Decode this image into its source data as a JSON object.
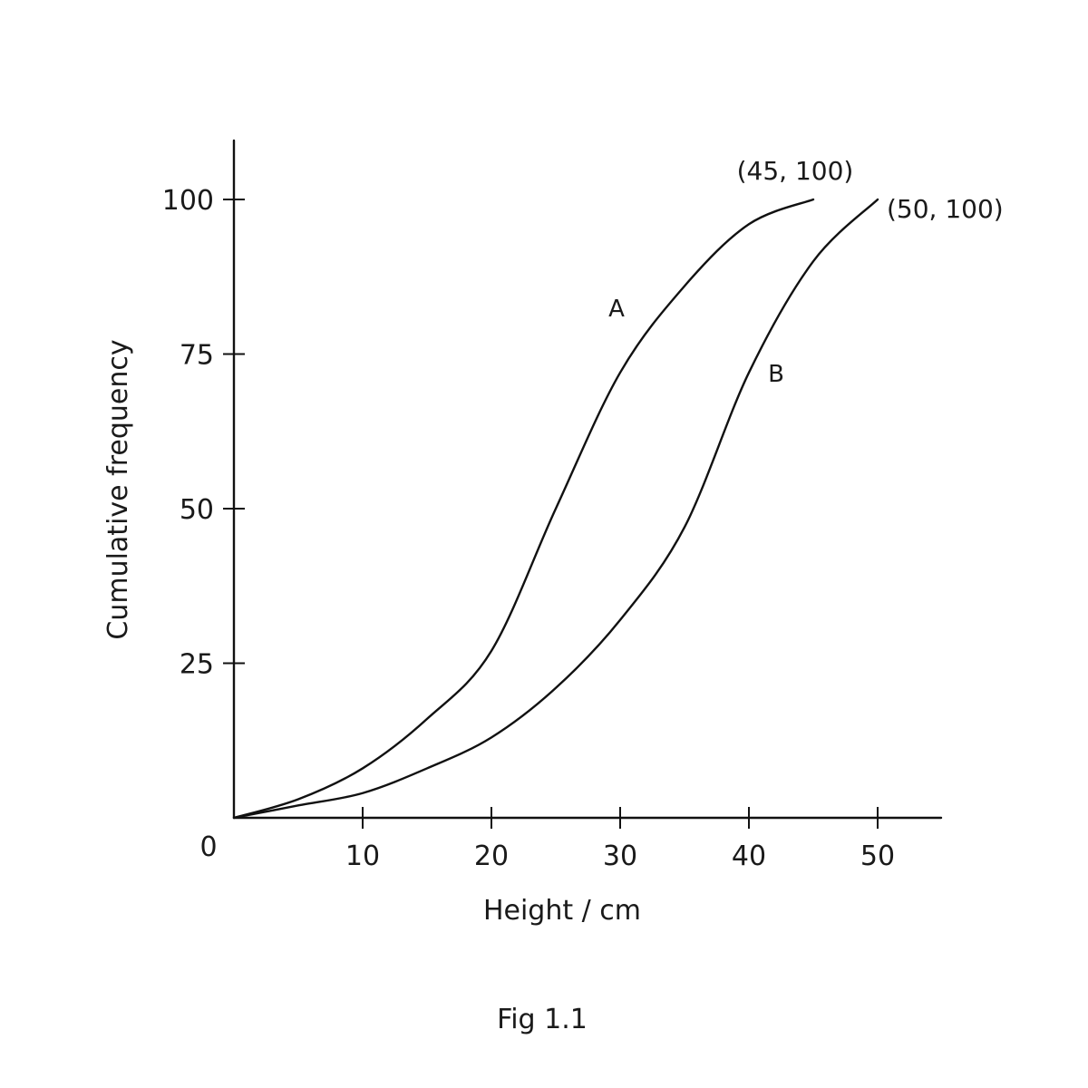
{
  "chart_data": {
    "type": "line",
    "xlabel": "Height / cm",
    "ylabel": "Cumulative frequency",
    "caption": "Fig 1.1",
    "origin_label": "0",
    "xlim": [
      0,
      55
    ],
    "ylim": [
      0,
      110
    ],
    "x_ticks": [
      10,
      20,
      30,
      40,
      50
    ],
    "y_ticks": [
      25,
      50,
      75,
      100
    ],
    "grid": false,
    "legend": "none",
    "series": [
      {
        "name": "A",
        "end_label": "(45, 100)",
        "x": [
          0,
          5,
          10,
          15,
          20,
          25,
          30,
          35,
          40,
          45
        ],
        "y": [
          0,
          3,
          8,
          16,
          27,
          50,
          72,
          86,
          96,
          100
        ]
      },
      {
        "name": "B",
        "end_label": "(50, 100)",
        "x": [
          0,
          5,
          10,
          15,
          20,
          25,
          30,
          35,
          40,
          45,
          50
        ],
        "y": [
          0,
          2,
          4,
          8,
          13,
          21,
          32,
          47,
          72,
          90,
          100
        ]
      }
    ]
  }
}
